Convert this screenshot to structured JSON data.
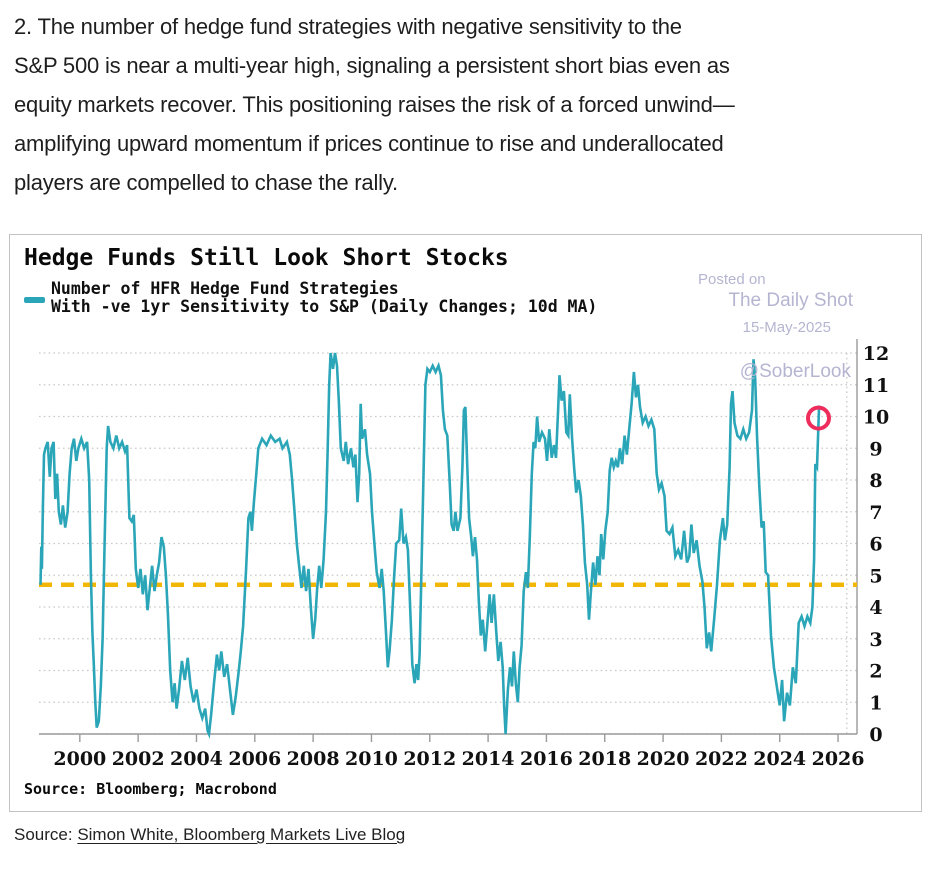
{
  "article": {
    "paragraph_lines": [
      "2. The number of hedge fund strategies with negative sensitivity to the",
      "S&P 500 is near a multi-year high, signaling a persistent short bias even as",
      "equity markets recover. This positioning raises the risk of a forced unwind—",
      "amplifying upward momentum if prices continue to rise and underallocated",
      "players are compelled to chase the rally."
    ]
  },
  "chart": {
    "title": "Hedge Funds Still Look Short Stocks",
    "legend_line1": "Number of HFR Hedge Fund Strategies",
    "legend_line2": "With -ve 1yr Sensitivity to S&P (Daily Changes; 10d MA)",
    "watermark": {
      "posted_on": "Posted on",
      "site": "The Daily Shot",
      "date": "15-May-2025",
      "handle": "@SoberLook"
    },
    "source_note": "Source: Bloomberg; Macrobond",
    "colors": {
      "line": "#2BA6B8",
      "dashed_line": "#F2B705",
      "marker": "#EE2D5C",
      "grid": "#C9C9C9",
      "axis": "#9A9A9A",
      "tick_label": "#111111",
      "watermark": "#B5B5D1"
    }
  },
  "chart_data": {
    "type": "line",
    "title": "Hedge Funds Still Look Short Stocks",
    "series_name": "Number of HFR Hedge Fund Strategies With -ve 1yr Sensitivity to S&P (Daily Changes; 10d MA)",
    "xlabel": "",
    "ylabel": "",
    "x_range": [
      1998.6,
      2026.65
    ],
    "y_range": [
      0,
      12
    ],
    "x_ticks": [
      2000,
      2002,
      2004,
      2006,
      2008,
      2010,
      2012,
      2014,
      2016,
      2018,
      2020,
      2022,
      2024,
      2026
    ],
    "y_ticks": [
      0,
      1,
      2,
      3,
      4,
      5,
      6,
      7,
      8,
      9,
      10,
      11,
      12
    ],
    "grid": "dotted-horizontal",
    "legend_position": "top-left",
    "dashed_reference_value": 4.7,
    "right_edge_dotted_vline_x": 2026.3,
    "end_marker": {
      "x": 2025.33,
      "y": 9.95
    },
    "points": [
      [
        1998.65,
        4.7
      ],
      [
        1998.68,
        5.9
      ],
      [
        1998.7,
        5.2
      ],
      [
        1998.73,
        7.0
      ],
      [
        1998.77,
        8.8
      ],
      [
        1998.82,
        9.0
      ],
      [
        1998.9,
        9.2
      ],
      [
        1998.97,
        8.1
      ],
      [
        1999.03,
        9.0
      ],
      [
        1999.1,
        9.2
      ],
      [
        1999.16,
        7.4
      ],
      [
        1999.22,
        8.2
      ],
      [
        1999.28,
        7.0
      ],
      [
        1999.35,
        6.6
      ],
      [
        1999.42,
        7.2
      ],
      [
        1999.5,
        6.5
      ],
      [
        1999.58,
        7.0
      ],
      [
        1999.65,
        8.2
      ],
      [
        1999.72,
        9.0
      ],
      [
        1999.8,
        9.3
      ],
      [
        1999.88,
        8.6
      ],
      [
        1999.95,
        9.0
      ],
      [
        2000.05,
        9.3
      ],
      [
        2000.15,
        9.0
      ],
      [
        2000.25,
        9.2
      ],
      [
        2000.32,
        8.0
      ],
      [
        2000.38,
        5.0
      ],
      [
        2000.43,
        3.2
      ],
      [
        2000.48,
        2.2
      ],
      [
        2000.53,
        1.0
      ],
      [
        2000.58,
        0.2
      ],
      [
        2000.65,
        0.4
      ],
      [
        2000.72,
        1.5
      ],
      [
        2000.78,
        3.0
      ],
      [
        2000.85,
        6.0
      ],
      [
        2000.92,
        9.0
      ],
      [
        2000.97,
        9.7
      ],
      [
        2001.05,
        9.2
      ],
      [
        2001.15,
        9.0
      ],
      [
        2001.25,
        9.4
      ],
      [
        2001.35,
        9.0
      ],
      [
        2001.45,
        9.2
      ],
      [
        2001.55,
        8.9
      ],
      [
        2001.62,
        9.1
      ],
      [
        2001.7,
        6.8
      ],
      [
        2001.78,
        6.7
      ],
      [
        2001.85,
        6.9
      ],
      [
        2001.92,
        5.2
      ],
      [
        2002.0,
        4.6
      ],
      [
        2002.08,
        5.2
      ],
      [
        2002.16,
        4.4
      ],
      [
        2002.24,
        5.0
      ],
      [
        2002.32,
        3.9
      ],
      [
        2002.4,
        4.6
      ],
      [
        2002.48,
        5.3
      ],
      [
        2002.56,
        4.5
      ],
      [
        2002.64,
        5.0
      ],
      [
        2002.72,
        5.4
      ],
      [
        2002.8,
        6.2
      ],
      [
        2002.88,
        5.9
      ],
      [
        2002.95,
        5.0
      ],
      [
        2003.02,
        3.8
      ],
      [
        2003.1,
        2.0
      ],
      [
        2003.18,
        1.0
      ],
      [
        2003.25,
        1.6
      ],
      [
        2003.32,
        0.8
      ],
      [
        2003.4,
        1.4
      ],
      [
        2003.5,
        2.3
      ],
      [
        2003.6,
        1.7
      ],
      [
        2003.7,
        2.4
      ],
      [
        2003.8,
        1.5
      ],
      [
        2003.9,
        1.0
      ],
      [
        2004.0,
        1.4
      ],
      [
        2004.1,
        0.8
      ],
      [
        2004.2,
        0.5
      ],
      [
        2004.3,
        0.8
      ],
      [
        2004.38,
        0.1
      ],
      [
        2004.43,
        0.0
      ],
      [
        2004.5,
        0.6
      ],
      [
        2004.6,
        1.6
      ],
      [
        2004.7,
        2.5
      ],
      [
        2004.78,
        2.0
      ],
      [
        2004.85,
        2.6
      ],
      [
        2004.95,
        1.8
      ],
      [
        2005.05,
        2.2
      ],
      [
        2005.15,
        1.4
      ],
      [
        2005.25,
        0.6
      ],
      [
        2005.35,
        1.2
      ],
      [
        2005.45,
        2.0
      ],
      [
        2005.52,
        2.6
      ],
      [
        2005.6,
        3.4
      ],
      [
        2005.7,
        5.2
      ],
      [
        2005.78,
        6.8
      ],
      [
        2005.85,
        7.0
      ],
      [
        2005.9,
        6.4
      ],
      [
        2005.97,
        7.3
      ],
      [
        2006.05,
        8.2
      ],
      [
        2006.12,
        9.0
      ],
      [
        2006.25,
        9.3
      ],
      [
        2006.4,
        9.1
      ],
      [
        2006.55,
        9.4
      ],
      [
        2006.7,
        9.2
      ],
      [
        2006.85,
        9.3
      ],
      [
        2006.95,
        9.0
      ],
      [
        2007.1,
        9.2
      ],
      [
        2007.2,
        8.8
      ],
      [
        2007.28,
        8.0
      ],
      [
        2007.36,
        7.0
      ],
      [
        2007.44,
        6.0
      ],
      [
        2007.52,
        5.3
      ],
      [
        2007.6,
        4.6
      ],
      [
        2007.68,
        5.3
      ],
      [
        2007.76,
        4.5
      ],
      [
        2007.84,
        5.2
      ],
      [
        2007.92,
        4.0
      ],
      [
        2008.0,
        3.0
      ],
      [
        2008.07,
        3.6
      ],
      [
        2008.14,
        4.6
      ],
      [
        2008.21,
        5.3
      ],
      [
        2008.28,
        4.6
      ],
      [
        2008.36,
        5.5
      ],
      [
        2008.44,
        7.0
      ],
      [
        2008.5,
        9.0
      ],
      [
        2008.55,
        11.0
      ],
      [
        2008.6,
        12.0
      ],
      [
        2008.68,
        11.5
      ],
      [
        2008.75,
        12.0
      ],
      [
        2008.82,
        11.6
      ],
      [
        2008.88,
        10.5
      ],
      [
        2008.95,
        9.0
      ],
      [
        2009.05,
        8.6
      ],
      [
        2009.12,
        9.2
      ],
      [
        2009.2,
        8.5
      ],
      [
        2009.3,
        9.0
      ],
      [
        2009.38,
        8.4
      ],
      [
        2009.45,
        8.8
      ],
      [
        2009.52,
        7.3
      ],
      [
        2009.58,
        8.2
      ],
      [
        2009.63,
        10.4
      ],
      [
        2009.68,
        9.3
      ],
      [
        2009.78,
        9.6
      ],
      [
        2009.85,
        8.8
      ],
      [
        2009.95,
        8.2
      ],
      [
        2010.02,
        7.0
      ],
      [
        2010.1,
        6.0
      ],
      [
        2010.18,
        5.1
      ],
      [
        2010.28,
        4.6
      ],
      [
        2010.35,
        5.2
      ],
      [
        2010.42,
        4.5
      ],
      [
        2010.5,
        3.2
      ],
      [
        2010.56,
        2.1
      ],
      [
        2010.62,
        2.6
      ],
      [
        2010.7,
        3.6
      ],
      [
        2010.78,
        5.0
      ],
      [
        2010.85,
        6.0
      ],
      [
        2010.95,
        6.1
      ],
      [
        2011.02,
        7.1
      ],
      [
        2011.1,
        6.0
      ],
      [
        2011.18,
        6.2
      ],
      [
        2011.25,
        5.8
      ],
      [
        2011.32,
        4.2
      ],
      [
        2011.4,
        2.2
      ],
      [
        2011.48,
        1.6
      ],
      [
        2011.54,
        2.2
      ],
      [
        2011.6,
        1.7
      ],
      [
        2011.65,
        2.5
      ],
      [
        2011.7,
        4.5
      ],
      [
        2011.78,
        8.0
      ],
      [
        2011.85,
        11.0
      ],
      [
        2011.92,
        11.5
      ],
      [
        2012.0,
        11.4
      ],
      [
        2012.1,
        11.6
      ],
      [
        2012.2,
        11.4
      ],
      [
        2012.3,
        11.6
      ],
      [
        2012.38,
        11.3
      ],
      [
        2012.45,
        10.2
      ],
      [
        2012.52,
        9.6
      ],
      [
        2012.6,
        9.4
      ],
      [
        2012.68,
        8.0
      ],
      [
        2012.75,
        6.6
      ],
      [
        2012.82,
        6.4
      ],
      [
        2012.88,
        7.0
      ],
      [
        2012.95,
        6.4
      ],
      [
        2013.05,
        6.8
      ],
      [
        2013.12,
        8.4
      ],
      [
        2013.17,
        10.2
      ],
      [
        2013.22,
        10.3
      ],
      [
        2013.28,
        8.6
      ],
      [
        2013.35,
        6.8
      ],
      [
        2013.42,
        6.2
      ],
      [
        2013.48,
        5.6
      ],
      [
        2013.55,
        6.2
      ],
      [
        2013.62,
        5.5
      ],
      [
        2013.68,
        4.2
      ],
      [
        2013.75,
        3.1
      ],
      [
        2013.82,
        3.6
      ],
      [
        2013.9,
        2.6
      ],
      [
        2013.97,
        3.4
      ],
      [
        2014.05,
        4.4
      ],
      [
        2014.12,
        3.5
      ],
      [
        2014.2,
        4.4
      ],
      [
        2014.28,
        3.2
      ],
      [
        2014.35,
        2.3
      ],
      [
        2014.43,
        2.9
      ],
      [
        2014.5,
        2.1
      ],
      [
        2014.55,
        0.9
      ],
      [
        2014.6,
        0.0
      ],
      [
        2014.68,
        1.4
      ],
      [
        2014.75,
        2.1
      ],
      [
        2014.82,
        1.5
      ],
      [
        2014.88,
        2.6
      ],
      [
        2014.95,
        1.6
      ],
      [
        2015.02,
        1.0
      ],
      [
        2015.08,
        2.1
      ],
      [
        2015.15,
        2.8
      ],
      [
        2015.22,
        4.5
      ],
      [
        2015.3,
        5.1
      ],
      [
        2015.36,
        4.6
      ],
      [
        2015.43,
        6.2
      ],
      [
        2015.5,
        8.2
      ],
      [
        2015.56,
        9.2
      ],
      [
        2015.62,
        9.0
      ],
      [
        2015.68,
        10.0
      ],
      [
        2015.75,
        9.2
      ],
      [
        2015.85,
        9.5
      ],
      [
        2015.95,
        9.3
      ],
      [
        2016.02,
        8.6
      ],
      [
        2016.1,
        9.6
      ],
      [
        2016.18,
        8.7
      ],
      [
        2016.26,
        9.1
      ],
      [
        2016.33,
        8.7
      ],
      [
        2016.4,
        10.2
      ],
      [
        2016.45,
        11.3
      ],
      [
        2016.52,
        10.5
      ],
      [
        2016.6,
        10.8
      ],
      [
        2016.68,
        9.5
      ],
      [
        2016.75,
        9.4
      ],
      [
        2016.8,
        10.7
      ],
      [
        2016.88,
        9.3
      ],
      [
        2016.95,
        8.4
      ],
      [
        2017.02,
        7.6
      ],
      [
        2017.1,
        8.0
      ],
      [
        2017.18,
        7.5
      ],
      [
        2017.25,
        6.6
      ],
      [
        2017.32,
        5.4
      ],
      [
        2017.4,
        4.7
      ],
      [
        2017.46,
        3.6
      ],
      [
        2017.52,
        4.4
      ],
      [
        2017.6,
        5.4
      ],
      [
        2017.68,
        4.7
      ],
      [
        2017.75,
        5.6
      ],
      [
        2017.82,
        5.0
      ],
      [
        2017.88,
        6.3
      ],
      [
        2017.95,
        5.5
      ],
      [
        2018.02,
        6.4
      ],
      [
        2018.1,
        7.0
      ],
      [
        2018.17,
        8.3
      ],
      [
        2018.24,
        8.7
      ],
      [
        2018.31,
        8.4
      ],
      [
        2018.38,
        8.6
      ],
      [
        2018.45,
        8.4
      ],
      [
        2018.52,
        9.0
      ],
      [
        2018.6,
        8.5
      ],
      [
        2018.68,
        9.4
      ],
      [
        2018.76,
        8.8
      ],
      [
        2018.84,
        9.6
      ],
      [
        2018.92,
        10.4
      ],
      [
        2019.0,
        11.4
      ],
      [
        2019.07,
        10.6
      ],
      [
        2019.14,
        11.0
      ],
      [
        2019.21,
        10.3
      ],
      [
        2019.3,
        9.8
      ],
      [
        2019.4,
        10.0
      ],
      [
        2019.5,
        9.7
      ],
      [
        2019.6,
        9.9
      ],
      [
        2019.7,
        9.6
      ],
      [
        2019.78,
        8.2
      ],
      [
        2019.86,
        7.7
      ],
      [
        2019.95,
        7.9
      ],
      [
        2020.05,
        7.5
      ],
      [
        2020.12,
        6.4
      ],
      [
        2020.22,
        6.3
      ],
      [
        2020.32,
        6.5
      ],
      [
        2020.42,
        5.6
      ],
      [
        2020.52,
        5.8
      ],
      [
        2020.62,
        5.5
      ],
      [
        2020.72,
        6.4
      ],
      [
        2020.82,
        5.4
      ],
      [
        2020.9,
        5.6
      ],
      [
        2020.97,
        6.6
      ],
      [
        2021.05,
        5.7
      ],
      [
        2021.15,
        6.1
      ],
      [
        2021.25,
        5.3
      ],
      [
        2021.35,
        4.8
      ],
      [
        2021.42,
        4.0
      ],
      [
        2021.5,
        2.7
      ],
      [
        2021.58,
        3.2
      ],
      [
        2021.65,
        2.6
      ],
      [
        2021.75,
        3.6
      ],
      [
        2021.85,
        4.7
      ],
      [
        2021.95,
        6.1
      ],
      [
        2022.05,
        6.8
      ],
      [
        2022.12,
        6.1
      ],
      [
        2022.2,
        6.6
      ],
      [
        2022.28,
        8.4
      ],
      [
        2022.33,
        10.4
      ],
      [
        2022.38,
        10.8
      ],
      [
        2022.45,
        9.8
      ],
      [
        2022.55,
        9.4
      ],
      [
        2022.65,
        9.3
      ],
      [
        2022.75,
        9.6
      ],
      [
        2022.85,
        9.3
      ],
      [
        2022.95,
        9.5
      ],
      [
        2023.05,
        10.2
      ],
      [
        2023.1,
        11.8
      ],
      [
        2023.16,
        11.2
      ],
      [
        2023.22,
        9.4
      ],
      [
        2023.3,
        7.8
      ],
      [
        2023.38,
        6.5
      ],
      [
        2023.45,
        6.7
      ],
      [
        2023.52,
        5.1
      ],
      [
        2023.6,
        5.0
      ],
      [
        2023.7,
        3.1
      ],
      [
        2023.8,
        2.1
      ],
      [
        2023.9,
        1.5
      ],
      [
        2024.0,
        0.9
      ],
      [
        2024.08,
        1.7
      ],
      [
        2024.15,
        0.4
      ],
      [
        2024.25,
        1.3
      ],
      [
        2024.35,
        0.9
      ],
      [
        2024.45,
        2.1
      ],
      [
        2024.55,
        1.6
      ],
      [
        2024.65,
        3.5
      ],
      [
        2024.75,
        3.7
      ],
      [
        2024.85,
        3.4
      ],
      [
        2024.95,
        3.7
      ],
      [
        2025.05,
        3.5
      ],
      [
        2025.12,
        4.0
      ],
      [
        2025.18,
        5.5
      ],
      [
        2025.22,
        8.5
      ],
      [
        2025.28,
        8.4
      ],
      [
        2025.35,
        10.35
      ]
    ]
  },
  "footer": {
    "source_prefix": "Source: ",
    "source_link": "Simon White, Bloomberg Markets Live Blog"
  }
}
